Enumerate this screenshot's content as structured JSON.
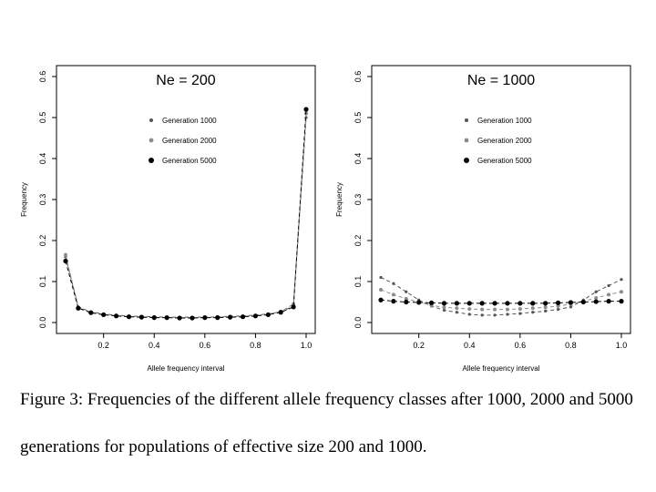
{
  "chart_data": [
    {
      "type": "line",
      "title": "Ne = 200",
      "xlabel": "Allele frequency interval",
      "ylabel": "Frequency",
      "xlim": [
        0.05,
        1.0
      ],
      "ylim": [
        0.0,
        0.6
      ],
      "xticks": [
        "0.2",
        "0.4",
        "0.6",
        "0.8",
        "1.0"
      ],
      "yticks": [
        "0.0",
        "0.1",
        "0.2",
        "0.3",
        "0.4",
        "0.5",
        "0.6"
      ],
      "legend_position": "top-center",
      "x": [
        0.05,
        0.1,
        0.15,
        0.2,
        0.25,
        0.3,
        0.35,
        0.4,
        0.45,
        0.5,
        0.55,
        0.6,
        0.65,
        0.7,
        0.75,
        0.8,
        0.85,
        0.9,
        0.95,
        1.0
      ],
      "series": [
        {
          "name": "Generation 1000",
          "color": "#555555",
          "values": [
            0.16,
            0.038,
            0.026,
            0.021,
            0.018,
            0.016,
            0.015,
            0.014,
            0.013,
            0.013,
            0.013,
            0.013,
            0.014,
            0.015,
            0.016,
            0.018,
            0.021,
            0.026,
            0.04,
            0.5
          ]
        },
        {
          "name": "Generation 2000",
          "color": "#8c8c8c",
          "values": [
            0.165,
            0.037,
            0.025,
            0.02,
            0.017,
            0.015,
            0.014,
            0.013,
            0.012,
            0.012,
            0.012,
            0.012,
            0.013,
            0.014,
            0.015,
            0.017,
            0.02,
            0.027,
            0.045,
            0.51
          ]
        },
        {
          "name": "Generation 5000",
          "color": "#000000",
          "values": [
            0.15,
            0.035,
            0.024,
            0.019,
            0.016,
            0.014,
            0.013,
            0.012,
            0.012,
            0.011,
            0.011,
            0.012,
            0.012,
            0.013,
            0.014,
            0.016,
            0.019,
            0.025,
            0.038,
            0.52
          ]
        }
      ]
    },
    {
      "type": "line",
      "title": "Ne = 1000",
      "xlabel": "Allele frequency interval",
      "ylabel": "Frequency",
      "xlim": [
        0.05,
        1.0
      ],
      "ylim": [
        0.0,
        0.6
      ],
      "xticks": [
        "0.2",
        "0.4",
        "0.6",
        "0.8",
        "1.0"
      ],
      "yticks": [
        "0.0",
        "0.1",
        "0.2",
        "0.3",
        "0.4",
        "0.5",
        "0.6"
      ],
      "legend_position": "top-center",
      "x": [
        0.05,
        0.1,
        0.15,
        0.2,
        0.25,
        0.3,
        0.35,
        0.4,
        0.45,
        0.5,
        0.55,
        0.6,
        0.65,
        0.7,
        0.75,
        0.8,
        0.85,
        0.9,
        0.95,
        1.0
      ],
      "series": [
        {
          "name": "Generation 1000",
          "color": "#555555",
          "values": [
            0.11,
            0.095,
            0.075,
            0.055,
            0.04,
            0.03,
            0.025,
            0.02,
            0.018,
            0.018,
            0.02,
            0.022,
            0.025,
            0.028,
            0.032,
            0.038,
            0.055,
            0.075,
            0.09,
            0.105
          ]
        },
        {
          "name": "Generation 2000",
          "color": "#8c8c8c",
          "values": [
            0.08,
            0.068,
            0.058,
            0.05,
            0.042,
            0.037,
            0.035,
            0.033,
            0.032,
            0.032,
            0.032,
            0.033,
            0.035,
            0.037,
            0.04,
            0.045,
            0.052,
            0.06,
            0.068,
            0.075
          ]
        },
        {
          "name": "Generation 5000",
          "color": "#000000",
          "values": [
            0.055,
            0.052,
            0.05,
            0.049,
            0.048,
            0.047,
            0.047,
            0.047,
            0.047,
            0.047,
            0.047,
            0.047,
            0.047,
            0.047,
            0.048,
            0.049,
            0.05,
            0.051,
            0.052,
            0.052
          ]
        }
      ]
    }
  ],
  "caption": {
    "line1": "Figure 3: Frequencies of the different allele frequency classes after 1000, 2000 and 5000",
    "line2": "generations for populations of effective size 200 and 1000."
  }
}
